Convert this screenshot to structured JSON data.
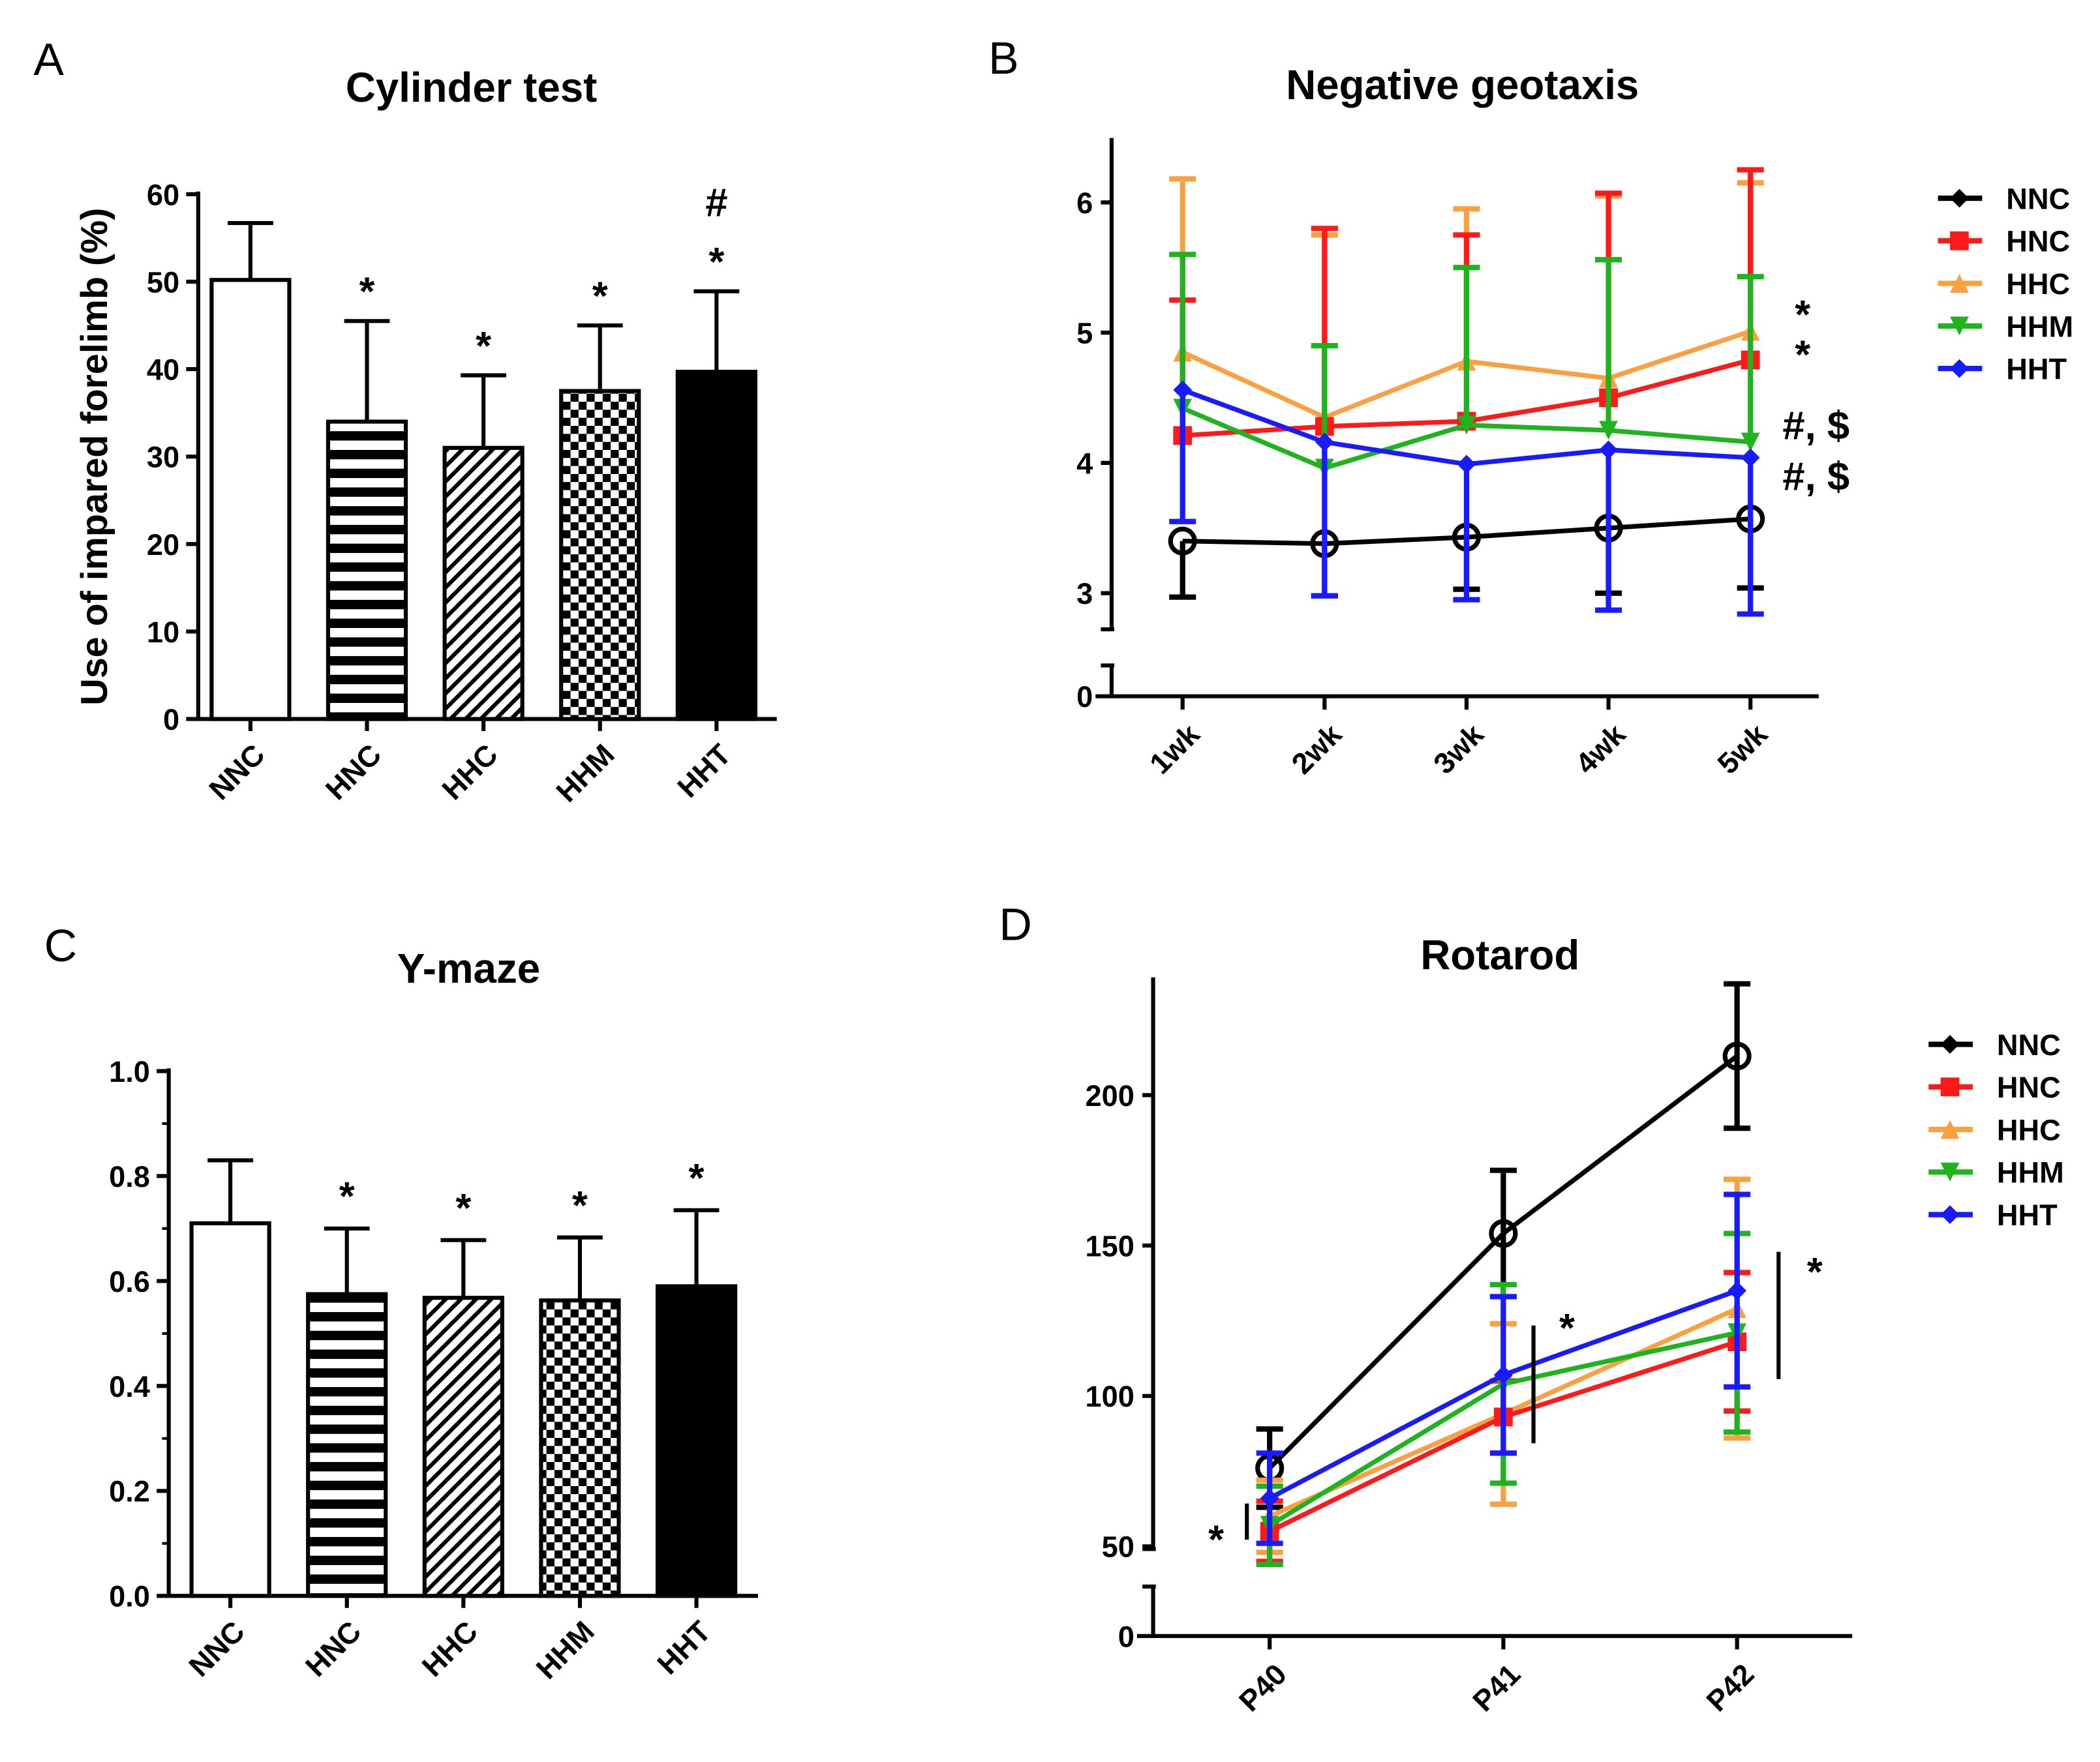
{
  "chart_data": [
    {
      "panel": "A",
      "type": "bar",
      "title": "Cylinder test",
      "xlabel": "",
      "ylabel": "Use of impared forelimb (%)",
      "ylim": [
        0,
        60
      ],
      "yticks": [
        "0",
        "10",
        "20",
        "30",
        "40",
        "50",
        "60"
      ],
      "categories": [
        "NNC",
        "HNC",
        "HHC",
        "HHM",
        "HHT"
      ],
      "values": [
        50.2,
        34.0,
        31.0,
        37.5,
        39.7
      ],
      "errors": [
        6.5,
        11.5,
        8.3,
        7.5,
        9.2
      ],
      "fills": [
        "white",
        "horizontal-stripes",
        "diagonal-hatch",
        "checkerboard",
        "black"
      ],
      "annotations": [
        [
          "",
          ""
        ],
        [
          "*",
          ""
        ],
        [
          "*",
          ""
        ],
        [
          "*",
          ""
        ],
        [
          "*",
          "#"
        ]
      ]
    },
    {
      "panel": "B",
      "type": "line",
      "title": "Negative geotaxis",
      "xlabel": "",
      "ylabel": "",
      "yticks": [
        "0",
        "3",
        "4",
        "5",
        "6"
      ],
      "ylim": [
        0,
        6.5
      ],
      "axis_break": [
        0.3,
        2.7
      ],
      "categories": [
        "1wk",
        "2wk",
        "3wk",
        "4wk",
        "5wk"
      ],
      "legend_position": "right",
      "series": [
        {
          "name": "NNC",
          "color": "#000000",
          "marker": "circle",
          "values": [
            3.4,
            3.38,
            3.43,
            3.5,
            3.57
          ],
          "errors": [
            0.43,
            0.4,
            0.4,
            0.5,
            0.53
          ],
          "error_direction": "down"
        },
        {
          "name": "HNC",
          "color": "#ff1a1a",
          "marker": "square",
          "values": [
            4.21,
            4.28,
            4.32,
            4.5,
            4.79
          ],
          "errors": [
            1.04,
            1.52,
            1.43,
            1.57,
            1.46
          ],
          "error_direction": "up"
        },
        {
          "name": "HHC",
          "color": "#f9a040",
          "marker": "triangle-up",
          "values": [
            4.85,
            4.35,
            4.78,
            4.65,
            5.01
          ],
          "errors": [
            1.33,
            1.4,
            1.17,
            1.4,
            1.14
          ],
          "error_direction": "up"
        },
        {
          "name": "HHM",
          "color": "#1fb31f",
          "marker": "triangle-down",
          "values": [
            4.42,
            3.96,
            4.29,
            4.25,
            4.16
          ],
          "errors": [
            1.18,
            0.94,
            1.21,
            1.31,
            1.27
          ],
          "error_direction": "up"
        },
        {
          "name": "HHT",
          "color": "#1a1aff",
          "marker": "diamond",
          "values": [
            4.56,
            4.16,
            3.99,
            4.1,
            4.04
          ],
          "errors": [
            1.01,
            1.18,
            1.04,
            1.23,
            1.2
          ],
          "error_direction": "down"
        }
      ],
      "annotations": [
        "*",
        "*",
        "#, $",
        "#, $"
      ]
    },
    {
      "panel": "C",
      "type": "bar",
      "title": "Y-maze",
      "xlabel": "",
      "ylabel": "",
      "ylim": [
        0,
        1.0
      ],
      "yticks": [
        "0.0",
        "0.2",
        "0.4",
        "0.6",
        "0.8",
        "1.0"
      ],
      "categories": [
        "NNC",
        "HNC",
        "HHC",
        "HHM",
        "HHT"
      ],
      "values": [
        0.71,
        0.575,
        0.568,
        0.563,
        0.59
      ],
      "errors": [
        0.12,
        0.125,
        0.11,
        0.12,
        0.145
      ],
      "fills": [
        "white",
        "horizontal-stripes",
        "diagonal-hatch",
        "checkerboard",
        "black"
      ],
      "annotations": [
        "",
        "*",
        "*",
        "*",
        "*"
      ]
    },
    {
      "panel": "D",
      "type": "line",
      "title": "Rotarod",
      "xlabel": "",
      "ylabel": "",
      "yticks": [
        "0",
        "50",
        "100",
        "150",
        "200"
      ],
      "ylim": [
        0,
        240
      ],
      "axis_break": [
        15,
        45
      ],
      "categories": [
        "P40",
        "P41",
        "P42"
      ],
      "legend_position": "right",
      "series": [
        {
          "name": "NNC",
          "color": "#000000",
          "marker": "circle",
          "values": [
            76,
            154,
            213
          ],
          "errors": [
            13,
            21,
            24
          ]
        },
        {
          "name": "HNC",
          "color": "#ff1a1a",
          "marker": "square",
          "values": [
            55,
            93,
            118
          ],
          "errors": [
            10,
            12,
            23
          ]
        },
        {
          "name": "HHC",
          "color": "#f9a040",
          "marker": "triangle-up",
          "values": [
            60,
            94,
            129
          ],
          "errors": [
            12,
            30,
            43
          ]
        },
        {
          "name": "HHM",
          "color": "#1fb31f",
          "marker": "triangle-down",
          "values": [
            57,
            104,
            121
          ],
          "errors": [
            13,
            33,
            33
          ]
        },
        {
          "name": "HHT",
          "color": "#1a1aff",
          "marker": "diamond",
          "values": [
            66,
            107,
            135
          ],
          "errors": [
            15,
            26,
            32
          ]
        }
      ],
      "annotations": [
        "*",
        "*",
        "*"
      ]
    }
  ]
}
